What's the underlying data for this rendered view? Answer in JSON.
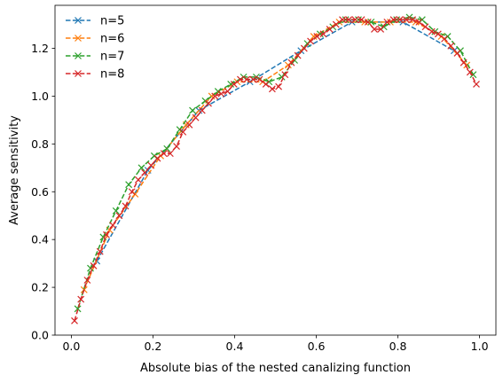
{
  "chart_data": {
    "type": "line",
    "xlabel": "Absolute bias of the nested canalizing function",
    "ylabel": "Average sensitivity",
    "xlim": [
      -0.04,
      1.04
    ],
    "ylim": [
      0.0,
      1.38
    ],
    "xticks": [
      0.0,
      0.2,
      0.4,
      0.6,
      0.8,
      1.0
    ],
    "xtick_labels": [
      "0.0",
      "0.2",
      "0.4",
      "0.6",
      "0.8",
      "1.0"
    ],
    "yticks": [
      0.0,
      0.2,
      0.4,
      0.6,
      0.8,
      1.0,
      1.2
    ],
    "ytick_labels": [
      "0.0",
      "0.2",
      "0.4",
      "0.6",
      "0.8",
      "1.0",
      "1.2"
    ],
    "grid": false,
    "legend_position": "top-left",
    "series": [
      {
        "name": "n=5",
        "color": "#1f77b4",
        "x": [
          0.0625,
          0.1875,
          0.3125,
          0.4375,
          0.5625,
          0.6875,
          0.8125,
          0.9375
        ],
        "y": [
          0.31,
          0.69,
          0.94,
          1.06,
          1.19,
          1.31,
          1.31,
          1.19
        ]
      },
      {
        "name": "n=6",
        "color": "#ff7f0e",
        "x": [
          0.03125,
          0.09375,
          0.15625,
          0.21875,
          0.28125,
          0.34375,
          0.40625,
          0.46875,
          0.53125,
          0.59375,
          0.65625,
          0.71875,
          0.78125,
          0.84375,
          0.90625,
          0.96875
        ],
        "y": [
          0.19,
          0.44,
          0.59,
          0.75,
          0.88,
          1.0,
          1.06,
          1.06,
          1.13,
          1.25,
          1.31,
          1.31,
          1.31,
          1.31,
          1.25,
          1.13
        ]
      },
      {
        "name": "n=7",
        "color": "#2ca02c",
        "x": [
          0.015625,
          0.046875,
          0.078125,
          0.109375,
          0.140625,
          0.171875,
          0.203125,
          0.234375,
          0.265625,
          0.296875,
          0.328125,
          0.359375,
          0.390625,
          0.421875,
          0.453125,
          0.484375,
          0.515625,
          0.546875,
          0.578125,
          0.609375,
          0.640625,
          0.671875,
          0.703125,
          0.734375,
          0.765625,
          0.796875,
          0.828125,
          0.859375,
          0.890625,
          0.921875,
          0.953125,
          0.984375
        ],
        "y": [
          0.11,
          0.28,
          0.41,
          0.52,
          0.63,
          0.7,
          0.75,
          0.78,
          0.86,
          0.94,
          0.98,
          1.02,
          1.05,
          1.08,
          1.08,
          1.06,
          1.08,
          1.15,
          1.22,
          1.26,
          1.29,
          1.32,
          1.32,
          1.31,
          1.29,
          1.32,
          1.33,
          1.32,
          1.27,
          1.25,
          1.19,
          1.09
        ]
      },
      {
        "name": "n=8",
        "color": "#d62728",
        "x": [
          0.0078125,
          0.0234375,
          0.0390625,
          0.0546875,
          0.0703125,
          0.0859375,
          0.1015625,
          0.1171875,
          0.1328125,
          0.1484375,
          0.1640625,
          0.1796875,
          0.1953125,
          0.2109375,
          0.2265625,
          0.2421875,
          0.2578125,
          0.2734375,
          0.2890625,
          0.3046875,
          0.3203125,
          0.3359375,
          0.3515625,
          0.3671875,
          0.3828125,
          0.3984375,
          0.4140625,
          0.4296875,
          0.4453125,
          0.4609375,
          0.4765625,
          0.4921875,
          0.5078125,
          0.5234375,
          0.5390625,
          0.5546875,
          0.5703125,
          0.5859375,
          0.6015625,
          0.6171875,
          0.6328125,
          0.6484375,
          0.6640625,
          0.6796875,
          0.6953125,
          0.7109375,
          0.7265625,
          0.7421875,
          0.7578125,
          0.7734375,
          0.7890625,
          0.8046875,
          0.8203125,
          0.8359375,
          0.8515625,
          0.8671875,
          0.8828125,
          0.8984375,
          0.9140625,
          0.9296875,
          0.9453125,
          0.9609375,
          0.9765625,
          0.9921875
        ],
        "y": [
          0.06,
          0.15,
          0.23,
          0.29,
          0.35,
          0.42,
          0.46,
          0.5,
          0.54,
          0.6,
          0.65,
          0.68,
          0.71,
          0.74,
          0.76,
          0.76,
          0.79,
          0.85,
          0.88,
          0.91,
          0.94,
          0.97,
          1.0,
          1.01,
          1.02,
          1.05,
          1.07,
          1.07,
          1.07,
          1.07,
          1.05,
          1.03,
          1.04,
          1.09,
          1.14,
          1.17,
          1.2,
          1.23,
          1.25,
          1.26,
          1.28,
          1.3,
          1.32,
          1.32,
          1.32,
          1.32,
          1.31,
          1.28,
          1.28,
          1.31,
          1.32,
          1.32,
          1.32,
          1.32,
          1.31,
          1.29,
          1.27,
          1.26,
          1.24,
          1.21,
          1.18,
          1.14,
          1.1,
          1.05
        ]
      }
    ]
  }
}
